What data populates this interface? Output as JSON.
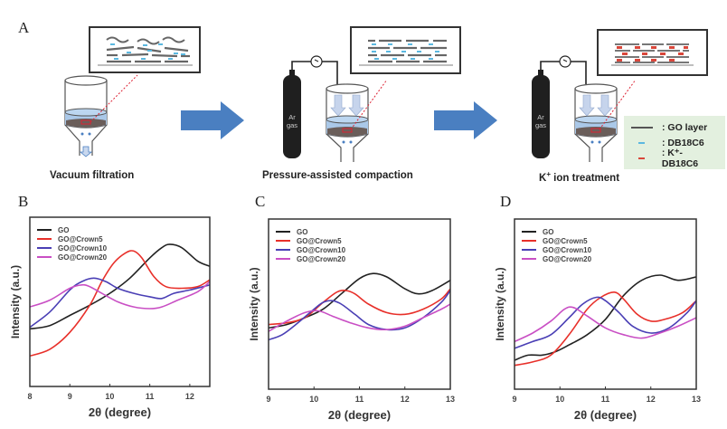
{
  "panel_A": {
    "letter": "A",
    "steps": [
      {
        "label": "Vacuum filtration"
      },
      {
        "label": "Pressure-assisted compaction",
        "gas_label_1": "Ar",
        "gas_label_2": "gas"
      },
      {
        "label_prefix": "K",
        "label_sup": "+",
        "label_suffix": " ion treatment",
        "gas_label_1": "Ar",
        "gas_label_2": "gas"
      }
    ],
    "legend": [
      {
        "text": ": GO layer",
        "color": "#555555"
      },
      {
        "text": ": DB18C6",
        "color": "#5bb8e0"
      },
      {
        "text": ": K⁺-DB18C6",
        "color": "#d9473b"
      }
    ],
    "arrow_color": "#4a7fc1"
  },
  "colors": {
    "GO": "#222222",
    "GO@Crown5": "#e8302a",
    "GO@Crown10": "#4a3fb5",
    "GO@Crown20": "#c94fc4"
  },
  "chart_data": [
    {
      "panel": "B",
      "type": "line",
      "xlabel": "2θ (degree)",
      "ylabel": "Intensity (a.u.)",
      "xlim": [
        8,
        12.5
      ],
      "ylim": [
        0,
        1
      ],
      "xticks": [
        "8",
        "9",
        "10",
        "11",
        "12"
      ],
      "xtick_values": [
        8,
        9,
        10,
        11,
        12
      ],
      "legend_position": "top-left",
      "series": [
        {
          "name": "GO",
          "x": [
            8,
            8.5,
            9,
            9.5,
            10,
            10.5,
            11,
            11.3,
            11.5,
            11.8,
            12.2,
            12.5
          ],
          "y": [
            0.34,
            0.36,
            0.42,
            0.48,
            0.55,
            0.64,
            0.76,
            0.82,
            0.84,
            0.82,
            0.74,
            0.71
          ]
        },
        {
          "name": "GO@Crown5",
          "x": [
            8,
            8.5,
            9,
            9.5,
            9.8,
            10.1,
            10.4,
            10.6,
            10.8,
            11.1,
            11.4,
            11.8,
            12.2,
            12.5
          ],
          "y": [
            0.18,
            0.22,
            0.32,
            0.48,
            0.62,
            0.73,
            0.79,
            0.8,
            0.76,
            0.65,
            0.59,
            0.58,
            0.59,
            0.63
          ]
        },
        {
          "name": "GO@Crown10",
          "x": [
            8,
            8.5,
            9,
            9.3,
            9.6,
            9.9,
            10.2,
            10.6,
            11,
            11.3,
            11.6,
            12,
            12.5
          ],
          "y": [
            0.35,
            0.44,
            0.57,
            0.62,
            0.64,
            0.62,
            0.58,
            0.55,
            0.53,
            0.52,
            0.55,
            0.57,
            0.6
          ]
        },
        {
          "name": "GO@Crown20",
          "x": [
            8,
            8.5,
            9,
            9.3,
            9.5,
            9.8,
            10.2,
            10.6,
            11,
            11.3,
            11.7,
            12.2,
            12.5
          ],
          "y": [
            0.47,
            0.51,
            0.58,
            0.6,
            0.59,
            0.55,
            0.5,
            0.47,
            0.46,
            0.47,
            0.51,
            0.56,
            0.62
          ]
        }
      ]
    },
    {
      "panel": "C",
      "type": "line",
      "xlabel": "2θ (degree)",
      "ylabel": "Intensity (a.u.)",
      "xlim": [
        9,
        13
      ],
      "ylim": [
        0,
        1
      ],
      "xticks": [
        "9",
        "10",
        "11",
        "12",
        "13"
      ],
      "xtick_values": [
        9,
        10,
        11,
        12,
        13
      ],
      "legend_position": "top-left",
      "series": [
        {
          "name": "GO",
          "x": [
            9,
            9.4,
            9.8,
            10.2,
            10.6,
            11,
            11.3,
            11.6,
            12,
            12.3,
            12.6,
            13
          ],
          "y": [
            0.36,
            0.38,
            0.42,
            0.47,
            0.56,
            0.65,
            0.68,
            0.66,
            0.59,
            0.56,
            0.58,
            0.64
          ]
        },
        {
          "name": "GO@Crown5",
          "x": [
            9,
            9.4,
            9.8,
            10.2,
            10.5,
            10.7,
            10.9,
            11.2,
            11.6,
            12,
            12.4,
            12.8,
            13
          ],
          "y": [
            0.38,
            0.39,
            0.42,
            0.51,
            0.57,
            0.58,
            0.56,
            0.5,
            0.45,
            0.44,
            0.47,
            0.53,
            0.59
          ]
        },
        {
          "name": "GO@Crown10",
          "x": [
            9,
            9.3,
            9.6,
            10,
            10.2,
            10.4,
            10.6,
            10.9,
            11.2,
            11.6,
            12,
            12.4,
            12.8,
            13
          ],
          "y": [
            0.29,
            0.32,
            0.38,
            0.47,
            0.51,
            0.52,
            0.5,
            0.44,
            0.38,
            0.35,
            0.36,
            0.42,
            0.51,
            0.58
          ]
        },
        {
          "name": "GO@Crown20",
          "x": [
            9,
            9.4,
            9.8,
            10.1,
            10.4,
            10.8,
            11.2,
            11.6,
            12,
            12.4,
            12.8,
            13
          ],
          "y": [
            0.34,
            0.4,
            0.45,
            0.46,
            0.43,
            0.39,
            0.36,
            0.35,
            0.37,
            0.42,
            0.47,
            0.5
          ]
        }
      ]
    },
    {
      "panel": "D",
      "type": "line",
      "xlabel": "2θ (degree)",
      "ylabel": "Intensity (a.u.)",
      "xlim": [
        9,
        13
      ],
      "ylim": [
        0,
        1
      ],
      "xticks": [
        "9",
        "10",
        "11",
        "12",
        "13"
      ],
      "xtick_values": [
        9,
        10,
        11,
        12,
        13
      ],
      "legend_position": "top-left",
      "series": [
        {
          "name": "GO",
          "x": [
            9,
            9.3,
            9.6,
            9.9,
            10.2,
            10.6,
            11,
            11.4,
            11.8,
            12.2,
            12.6,
            13
          ],
          "y": [
            0.17,
            0.2,
            0.2,
            0.22,
            0.26,
            0.32,
            0.41,
            0.55,
            0.64,
            0.67,
            0.64,
            0.66
          ]
        },
        {
          "name": "GO@Crown5",
          "x": [
            9,
            9.4,
            9.8,
            10.2,
            10.6,
            10.9,
            11.2,
            11.4,
            11.7,
            12,
            12.3,
            12.7,
            13
          ],
          "y": [
            0.14,
            0.16,
            0.2,
            0.32,
            0.47,
            0.54,
            0.57,
            0.53,
            0.44,
            0.4,
            0.41,
            0.45,
            0.52
          ]
        },
        {
          "name": "GO@Crown10",
          "x": [
            9,
            9.4,
            9.8,
            10.2,
            10.5,
            10.8,
            11,
            11.3,
            11.6,
            12,
            12.4,
            12.8,
            13
          ],
          "y": [
            0.24,
            0.28,
            0.32,
            0.42,
            0.5,
            0.54,
            0.52,
            0.45,
            0.37,
            0.33,
            0.36,
            0.45,
            0.52
          ]
        },
        {
          "name": "GO@Crown20",
          "x": [
            9,
            9.4,
            9.8,
            10.1,
            10.3,
            10.6,
            11,
            11.4,
            11.8,
            12.2,
            12.6,
            13
          ],
          "y": [
            0.28,
            0.33,
            0.4,
            0.47,
            0.48,
            0.43,
            0.36,
            0.32,
            0.3,
            0.33,
            0.37,
            0.42
          ]
        }
      ]
    }
  ]
}
